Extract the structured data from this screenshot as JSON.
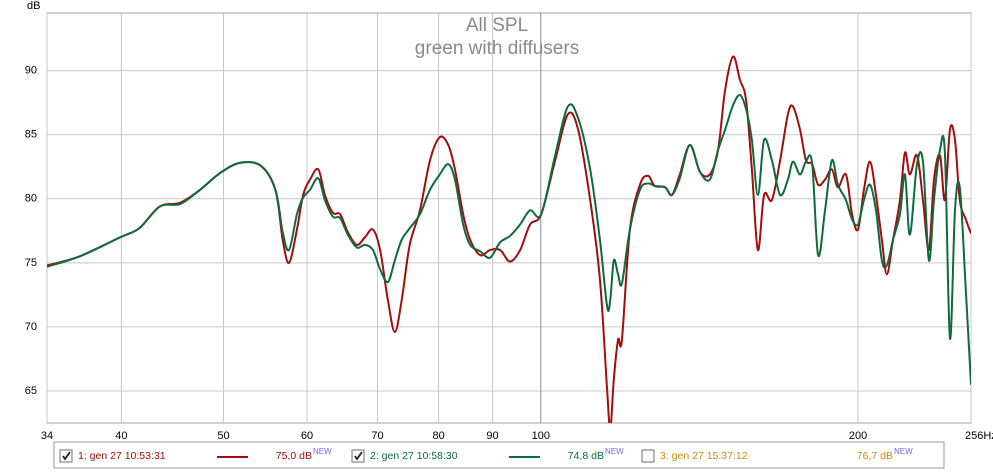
{
  "chart_data": {
    "type": "line",
    "title": "All SPL",
    "subtitle": "green with diffusers",
    "y_label": "dB",
    "log_x": true,
    "grid": true,
    "xlim": [
      34,
      256
    ],
    "ylim": [
      62.5,
      94.5
    ],
    "xticks": [
      34,
      40,
      50,
      60,
      70,
      80,
      90,
      100,
      200,
      {
        "value": 256,
        "label": "256Hz"
      }
    ],
    "yticks": [
      65,
      70,
      75,
      80,
      85,
      90
    ],
    "x": [
      34.0,
      36.5,
      39.9,
      41.6,
      43.5,
      45.5,
      47.5,
      49.6,
      51.8,
      54.2,
      56.0,
      56.9,
      57.7,
      58.7,
      59.5,
      60.4,
      61.5,
      62.4,
      63.5,
      64.5,
      65.6,
      66.9,
      68.1,
      69.3,
      70.4,
      71.6,
      72.7,
      73.8,
      75.1,
      76.8,
      78.5,
      80.2,
      81.7,
      82.9,
      84.4,
      85.7,
      87.6,
      89.5,
      91.5,
      93.5,
      95.6,
      97.7,
      100.1,
      103.2,
      106.1,
      108.5,
      111.4,
      113.8,
      115.6,
      116.4,
      117.3,
      118.4,
      119.4,
      121.5,
      124.2,
      126.4,
      128.3,
      131.2,
      133.2,
      135.5,
      138.5,
      141.6,
      144.7,
      147.3,
      149.6,
      152.2,
      154.5,
      156.6,
      158.6,
      160.7,
      162.9,
      165.7,
      168.7,
      171.6,
      173.5,
      176.2,
      178.5,
      180.9,
      183.3,
      186.1,
      188.9,
      191.4,
      194.8,
      197.4,
      200.0,
      202.6,
      205.3,
      208.0,
      210.7,
      213.0,
      215.9,
      219.2,
      221.6,
      224.0,
      227.5,
      230.5,
      233.5,
      236.1,
      239.2,
      241.8,
      244.5,
      247.2,
      249.8,
      253.1,
      256.0
    ],
    "series": [
      {
        "name": "1: gen 27 10:53:31",
        "color": "#a30d0d",
        "level": "75,0 dB",
        "badge": "NEW",
        "checked": true,
        "values": [
          74.8,
          75.5,
          77.0,
          77.7,
          79.4,
          79.7,
          80.7,
          82.0,
          82.8,
          82.6,
          80.7,
          76.8,
          75.0,
          77.6,
          80.3,
          81.5,
          82.3,
          80.3,
          78.9,
          78.8,
          77.4,
          76.4,
          77.0,
          77.6,
          76.0,
          72.1,
          69.6,
          72.1,
          76.4,
          79.1,
          83.0,
          84.8,
          84.2,
          82.3,
          78.8,
          76.8,
          75.6,
          76.0,
          76.0,
          75.1,
          76.0,
          78.0,
          78.8,
          83.0,
          86.6,
          85.4,
          79.9,
          73.7,
          65.1,
          62.0,
          65.9,
          69.0,
          69.0,
          77.6,
          81.1,
          81.8,
          81.0,
          80.9,
          80.3,
          81.9,
          84.2,
          82.1,
          81.9,
          83.8,
          88.5,
          91.1,
          89.3,
          87.7,
          82.3,
          76.0,
          80.3,
          79.9,
          83.0,
          86.6,
          87.2,
          85.4,
          83.0,
          82.7,
          81.1,
          81.5,
          82.3,
          80.9,
          81.9,
          78.8,
          77.6,
          80.7,
          82.9,
          80.3,
          76.8,
          74.1,
          76.8,
          79.9,
          83.6,
          81.9,
          83.4,
          79.9,
          76.0,
          81.5,
          83.4,
          79.9,
          85.4,
          84.6,
          79.9,
          78.4,
          77.3
        ]
      },
      {
        "name": "2: gen 27 10:58:30",
        "color": "#0d6b3c",
        "level": "74,8 dB",
        "badge": "NEW",
        "checked": true,
        "values": [
          74.7,
          75.5,
          77.0,
          77.7,
          79.4,
          79.6,
          80.7,
          82.0,
          82.8,
          82.6,
          80.7,
          77.4,
          76.0,
          78.8,
          80.1,
          80.7,
          81.6,
          79.9,
          78.6,
          78.5,
          77.2,
          76.2,
          76.4,
          76.0,
          74.5,
          73.5,
          75.2,
          76.8,
          77.7,
          78.8,
          80.7,
          81.9,
          82.7,
          81.5,
          78.0,
          76.4,
          75.9,
          75.4,
          76.6,
          77.1,
          78.0,
          79.1,
          78.8,
          83.4,
          87.2,
          86.3,
          82.3,
          76.8,
          71.6,
          72.1,
          75.2,
          74.1,
          73.4,
          77.6,
          80.7,
          81.2,
          81.0,
          80.9,
          80.3,
          81.6,
          84.2,
          82.1,
          81.5,
          83.8,
          85.4,
          87.3,
          88.1,
          87.0,
          84.6,
          80.3,
          84.6,
          83.0,
          80.3,
          81.5,
          82.9,
          81.9,
          82.9,
          82.8,
          75.6,
          79.1,
          83.0,
          81.1,
          79.9,
          78.4,
          78.0,
          79.9,
          81.1,
          79.1,
          75.2,
          74.8,
          76.8,
          78.8,
          81.9,
          77.2,
          82.7,
          82.9,
          75.2,
          79.9,
          83.8,
          83.6,
          69.1,
          79.1,
          80.9,
          72.9,
          65.5
        ]
      },
      {
        "name": "3: gen 27 15:37:12",
        "color": "#d4880e",
        "level": "76,7 dB",
        "badge": "NEW",
        "checked": false
      }
    ]
  }
}
